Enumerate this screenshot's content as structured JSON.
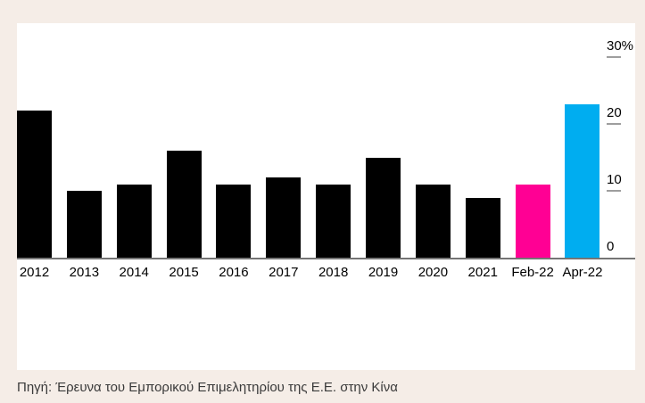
{
  "colors": {
    "page_background": "#f5ede7",
    "plot_background": "#ffffff",
    "bar_default": "#000000",
    "bar_feb22": "#ff0094",
    "bar_apr22": "#00adf0",
    "axis_baseline": "#757575",
    "tick_mark": "#9e9e9e",
    "axis_text": "#000000",
    "source_text": "#3a3a3a"
  },
  "chart_data": {
    "type": "bar",
    "title": "",
    "categories": [
      "2012",
      "2013",
      "2014",
      "2015",
      "2016",
      "2017",
      "2018",
      "2019",
      "2020",
      "2021",
      "Feb-22",
      "Apr-22"
    ],
    "values": [
      22,
      10,
      11,
      16,
      11,
      12,
      11,
      15,
      11,
      9,
      11,
      23
    ],
    "unit": "%",
    "ylim": [
      0,
      30
    ],
    "ytick_values": [
      30,
      20,
      10,
      0
    ],
    "ytick_labels": [
      "30%",
      "20",
      "10",
      "0"
    ],
    "axis_side": "right",
    "grid": false,
    "legend": "none",
    "bar_colors": [
      "#000000",
      "#000000",
      "#000000",
      "#000000",
      "#000000",
      "#000000",
      "#000000",
      "#000000",
      "#000000",
      "#000000",
      "#ff0094",
      "#00adf0"
    ]
  },
  "source_caption": "Πηγή: Έρευνα του Εμπορικού Επιμελητηρίου της Ε.Ε. στην Κίνα"
}
